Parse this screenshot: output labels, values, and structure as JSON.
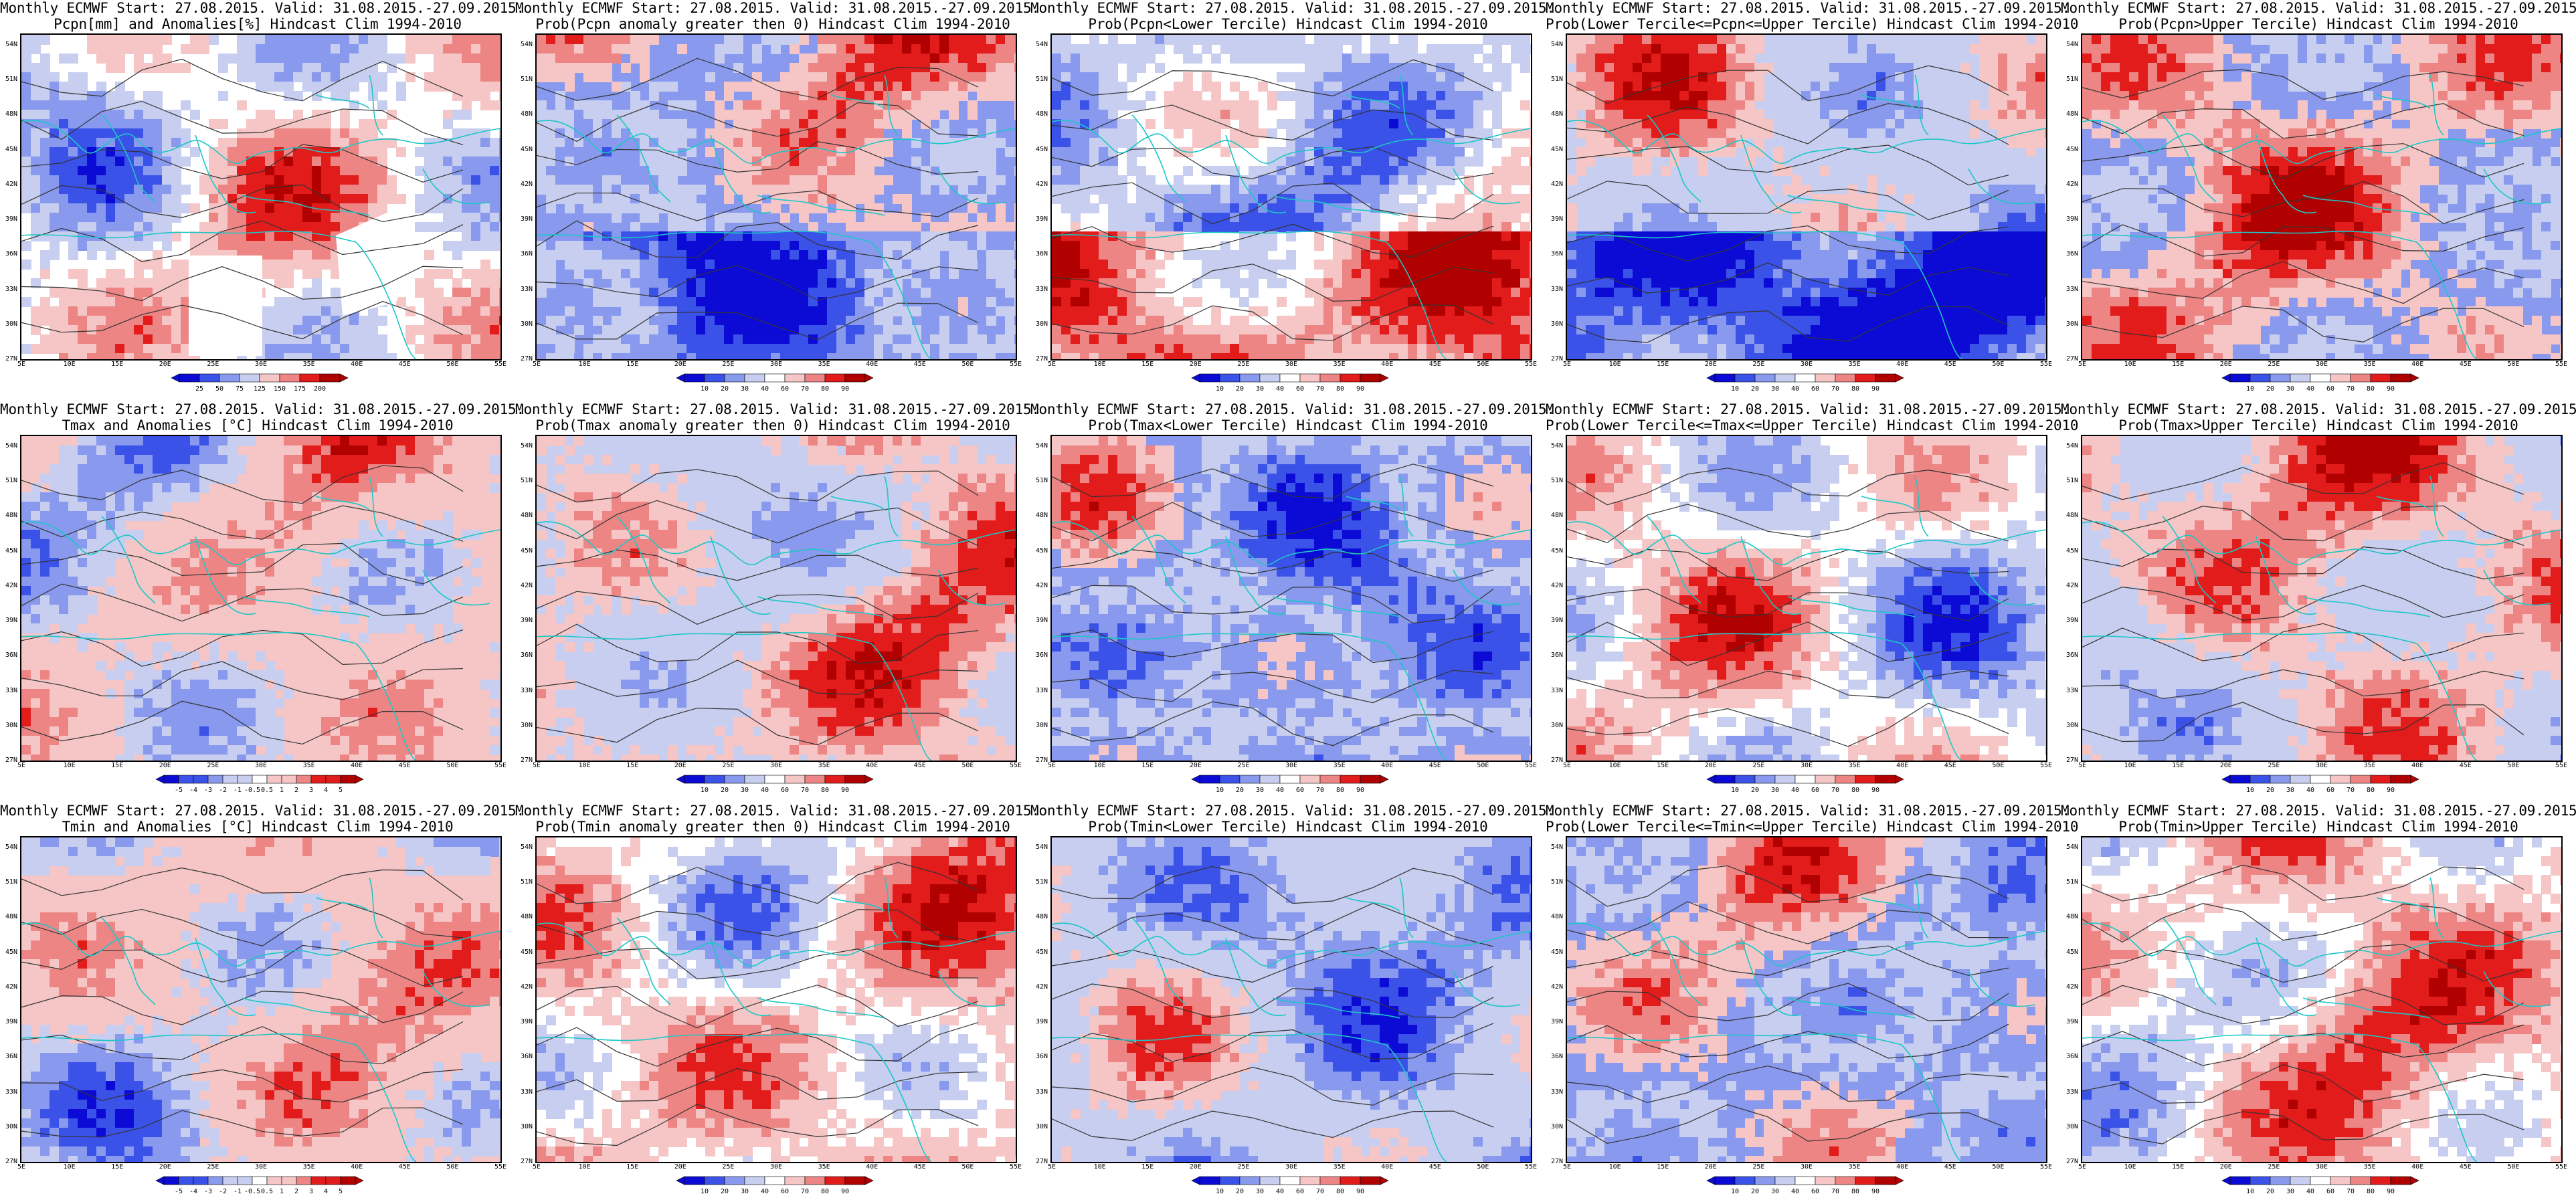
{
  "figure": {
    "title_line1": "Monthly ECMWF Start: 27.08.2015. Valid: 31.08.2015.-27.09.2015.",
    "lat_ticks": [
      "54N",
      "51N",
      "48N",
      "45N",
      "42N",
      "39N",
      "36N",
      "33N",
      "30N",
      "27N"
    ],
    "lon_ticks": [
      "5E",
      "10E",
      "15E",
      "20E",
      "25E",
      "30E",
      "35E",
      "40E",
      "45E",
      "50E",
      "55E"
    ]
  },
  "colors": {
    "dark_blue": "#0b0bd5",
    "blue": "#3b52e8",
    "mid_blue": "#8899ee",
    "light_blue": "#c7ceef",
    "white": "#ffffff",
    "light_red": "#f6c6c6",
    "mid_red": "#ee8585",
    "red": "#e21b1b",
    "dark_red": "#b00000",
    "contour": "#333333",
    "coast": "#1cc7c7"
  },
  "panels": [
    {
      "id": "pcpn-anom",
      "title2": "Pcpn[mm] and Anomalies[%] Hindcast Clim 1994-2010",
      "type": "anom_pcpn",
      "cbar": [
        "25",
        "50",
        "75",
        "125",
        "150",
        "175",
        "200"
      ],
      "has_blank": true
    },
    {
      "id": "pcpn-prob-pos",
      "title2": "Prob(Pcpn anomaly greater then 0) Hindcast Clim 1994-2010",
      "type": "prob",
      "cbar": [
        "10",
        "20",
        "30",
        "40",
        "60",
        "70",
        "80",
        "90"
      ]
    },
    {
      "id": "pcpn-lower",
      "title2": "Prob(Pcpn<Lower Tercile) Hindcast Clim 1994-2010",
      "type": "prob",
      "cbar": [
        "10",
        "20",
        "30",
        "40",
        "60",
        "70",
        "80",
        "90"
      ]
    },
    {
      "id": "pcpn-middle",
      "title2": "Prob(Lower Tercile<=Pcpn<=Upper Tercile) Hindcast Clim 1994-2010",
      "type": "prob",
      "cbar": [
        "10",
        "20",
        "30",
        "40",
        "60",
        "70",
        "80",
        "90"
      ]
    },
    {
      "id": "pcpn-upper",
      "title2": "Prob(Pcpn>Upper Tercile) Hindcast Clim 1994-2010",
      "type": "prob",
      "cbar": [
        "10",
        "20",
        "30",
        "40",
        "60",
        "70",
        "80",
        "90"
      ]
    },
    {
      "id": "tmax-anom",
      "title2": "Tmax and Anomalies [°C] Hindcast Clim 1994-2010",
      "type": "anom_temp",
      "cbar": [
        "-5",
        "-4",
        "-3",
        "-2",
        "-1",
        "-0.5",
        "0.5",
        "1",
        "2",
        "3",
        "4",
        "5"
      ]
    },
    {
      "id": "tmax-prob-pos",
      "title2": "Prob(Tmax anomaly greater then 0) Hindcast Clim 1994-2010",
      "type": "prob",
      "cbar": [
        "10",
        "20",
        "30",
        "40",
        "60",
        "70",
        "80",
        "90"
      ]
    },
    {
      "id": "tmax-lower",
      "title2": "Prob(Tmax<Lower Tercile) Hindcast Clim 1994-2010",
      "type": "prob",
      "cbar": [
        "10",
        "20",
        "30",
        "40",
        "60",
        "70",
        "80",
        "90"
      ]
    },
    {
      "id": "tmax-middle",
      "title2": "Prob(Lower Tercile<=Tmax<=Upper Tercile) Hindcast Clim 1994-2010",
      "type": "prob",
      "cbar": [
        "10",
        "20",
        "30",
        "40",
        "60",
        "70",
        "80",
        "90"
      ]
    },
    {
      "id": "tmax-upper",
      "title2": "Prob(Tmax>Upper Tercile) Hindcast Clim 1994-2010",
      "type": "prob",
      "cbar": [
        "10",
        "20",
        "30",
        "40",
        "60",
        "70",
        "80",
        "90"
      ]
    },
    {
      "id": "tmin-anom",
      "title2": "Tmin and Anomalies [°C] Hindcast Clim 1994-2010",
      "type": "anom_temp",
      "cbar": [
        "-5",
        "-4",
        "-3",
        "-2",
        "-1",
        "-0.5",
        "0.5",
        "1",
        "2",
        "3",
        "4",
        "5"
      ]
    },
    {
      "id": "tmin-prob-pos",
      "title2": "Prob(Tmin anomaly greater then 0) Hindcast Clim 1994-2010",
      "type": "prob",
      "cbar": [
        "10",
        "20",
        "30",
        "40",
        "60",
        "70",
        "80",
        "90"
      ]
    },
    {
      "id": "tmin-lower",
      "title2": "Prob(Tmin<Lower Tercile) Hindcast Clim 1994-2010",
      "type": "prob",
      "cbar": [
        "10",
        "20",
        "30",
        "40",
        "60",
        "70",
        "80",
        "90"
      ]
    },
    {
      "id": "tmin-middle",
      "title2": "Prob(Lower Tercile<=Tmin<=Upper Tercile) Hindcast Clim 1994-2010",
      "type": "prob",
      "cbar": [
        "10",
        "20",
        "30",
        "40",
        "60",
        "70",
        "80",
        "90"
      ]
    },
    {
      "id": "tmin-upper",
      "title2": "Prob(Tmin>Upper Tercile) Hindcast Clim 1994-2010",
      "type": "prob",
      "cbar": [
        "10",
        "20",
        "30",
        "40",
        "60",
        "70",
        "80",
        "90"
      ]
    }
  ],
  "palette_order": [
    "dark_blue",
    "blue",
    "mid_blue",
    "light_blue",
    "white",
    "light_red",
    "mid_red",
    "red",
    "dark_red"
  ]
}
